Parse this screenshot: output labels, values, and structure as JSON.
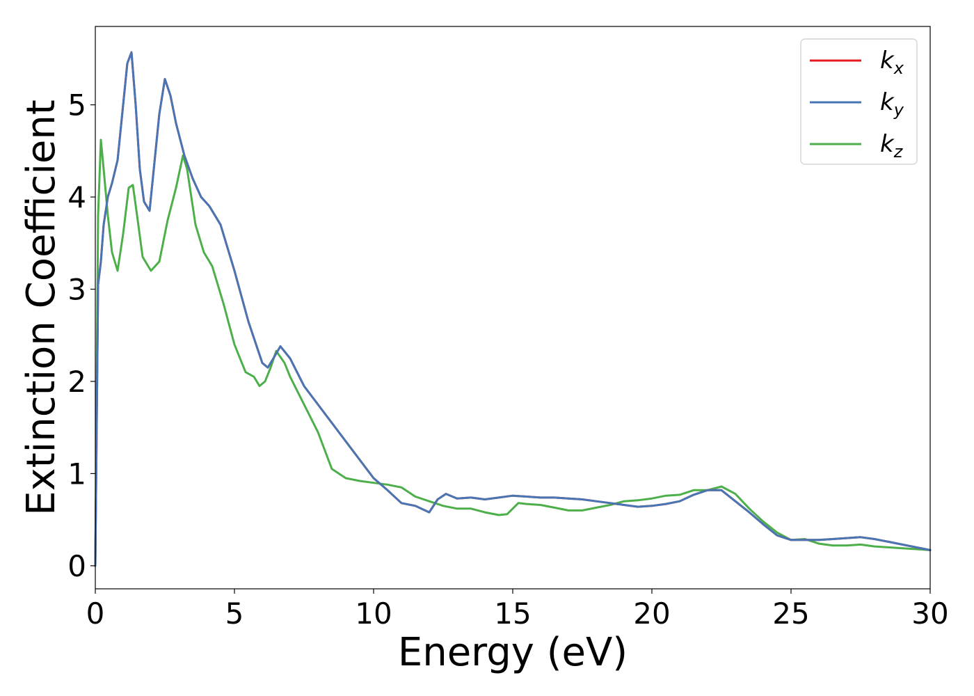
{
  "chart_data": {
    "type": "line",
    "title": "",
    "xlabel": "Energy (eV)",
    "ylabel": "Extinction Coefficient",
    "xlim": [
      0,
      30
    ],
    "ylim": [
      -0.25,
      5.85
    ],
    "xticks": [
      0,
      5,
      10,
      15,
      20,
      25,
      30
    ],
    "yticks": [
      0,
      1,
      2,
      3,
      4,
      5
    ],
    "grid": false,
    "legend_position": "top-right",
    "series": [
      {
        "name": "k",
        "subscript": "x",
        "color": "#e41a1c",
        "x": [
          0,
          0.1,
          0.2,
          0.3,
          0.45,
          0.6,
          0.8,
          1.0,
          1.15,
          1.3,
          1.45,
          1.6,
          1.75,
          1.95,
          2.1,
          2.3,
          2.5,
          2.7,
          2.9,
          3.2,
          3.5,
          3.8,
          4.1,
          4.5,
          5.0,
          5.5,
          6.0,
          6.2,
          6.4,
          6.65,
          7.0,
          7.5,
          8.0,
          8.5,
          9.0,
          9.5,
          10.0,
          10.5,
          11.0,
          11.5,
          12.0,
          12.3,
          12.6,
          13.0,
          13.5,
          14.0,
          14.5,
          15.0,
          15.5,
          16.0,
          16.5,
          17.0,
          17.5,
          18.0,
          18.5,
          19.0,
          19.5,
          20.0,
          20.5,
          21.0,
          21.5,
          22.0,
          22.5,
          23.0,
          23.5,
          24.0,
          24.5,
          25.0,
          25.5,
          26.0,
          26.5,
          27.0,
          27.5,
          28.0,
          28.5,
          29.0,
          29.5,
          30.0
        ],
        "values": [
          0,
          3.05,
          3.3,
          3.7,
          4.0,
          4.15,
          4.4,
          5.0,
          5.45,
          5.57,
          5.0,
          4.3,
          3.95,
          3.85,
          4.3,
          4.9,
          5.28,
          5.1,
          4.8,
          4.45,
          4.2,
          4.0,
          3.9,
          3.7,
          3.2,
          2.65,
          2.2,
          2.15,
          2.25,
          2.38,
          2.25,
          1.95,
          1.75,
          1.55,
          1.35,
          1.15,
          0.95,
          0.82,
          0.68,
          0.65,
          0.58,
          0.72,
          0.78,
          0.73,
          0.74,
          0.72,
          0.74,
          0.76,
          0.75,
          0.74,
          0.74,
          0.73,
          0.72,
          0.7,
          0.68,
          0.66,
          0.64,
          0.65,
          0.67,
          0.7,
          0.77,
          0.82,
          0.82,
          0.7,
          0.58,
          0.45,
          0.33,
          0.28,
          0.28,
          0.28,
          0.29,
          0.3,
          0.31,
          0.29,
          0.26,
          0.23,
          0.2,
          0.17
        ]
      },
      {
        "name": "k",
        "subscript": "y",
        "color": "#4876b4",
        "x": [
          0,
          0.1,
          0.2,
          0.3,
          0.45,
          0.6,
          0.8,
          1.0,
          1.15,
          1.3,
          1.45,
          1.6,
          1.75,
          1.95,
          2.1,
          2.3,
          2.5,
          2.7,
          2.9,
          3.2,
          3.5,
          3.8,
          4.1,
          4.5,
          5.0,
          5.5,
          6.0,
          6.2,
          6.4,
          6.65,
          7.0,
          7.5,
          8.0,
          8.5,
          9.0,
          9.5,
          10.0,
          10.5,
          11.0,
          11.5,
          12.0,
          12.3,
          12.6,
          13.0,
          13.5,
          14.0,
          14.5,
          15.0,
          15.5,
          16.0,
          16.5,
          17.0,
          17.5,
          18.0,
          18.5,
          19.0,
          19.5,
          20.0,
          20.5,
          21.0,
          21.5,
          22.0,
          22.5,
          23.0,
          23.5,
          24.0,
          24.5,
          25.0,
          25.5,
          26.0,
          26.5,
          27.0,
          27.5,
          28.0,
          28.5,
          29.0,
          29.5,
          30.0
        ],
        "values": [
          0,
          3.05,
          3.3,
          3.7,
          4.0,
          4.15,
          4.4,
          5.0,
          5.45,
          5.57,
          5.0,
          4.3,
          3.95,
          3.85,
          4.3,
          4.9,
          5.28,
          5.1,
          4.8,
          4.45,
          4.2,
          4.0,
          3.9,
          3.7,
          3.2,
          2.65,
          2.2,
          2.15,
          2.25,
          2.38,
          2.25,
          1.95,
          1.75,
          1.55,
          1.35,
          1.15,
          0.95,
          0.82,
          0.68,
          0.65,
          0.58,
          0.72,
          0.78,
          0.73,
          0.74,
          0.72,
          0.74,
          0.76,
          0.75,
          0.74,
          0.74,
          0.73,
          0.72,
          0.7,
          0.68,
          0.66,
          0.64,
          0.65,
          0.67,
          0.7,
          0.77,
          0.82,
          0.82,
          0.7,
          0.58,
          0.45,
          0.33,
          0.28,
          0.28,
          0.28,
          0.29,
          0.3,
          0.31,
          0.29,
          0.26,
          0.23,
          0.2,
          0.17
        ]
      },
      {
        "name": "k",
        "subscript": "z",
        "color": "#4daf4a",
        "x": [
          0,
          0.1,
          0.2,
          0.3,
          0.45,
          0.6,
          0.8,
          1.0,
          1.2,
          1.35,
          1.5,
          1.7,
          2.0,
          2.3,
          2.6,
          2.9,
          3.15,
          3.3,
          3.6,
          3.9,
          4.2,
          4.6,
          5.0,
          5.4,
          5.7,
          5.9,
          6.1,
          6.3,
          6.5,
          6.8,
          7.0,
          7.5,
          8.0,
          8.5,
          9.0,
          9.5,
          10.0,
          10.5,
          11.0,
          11.5,
          12.0,
          12.5,
          13.0,
          13.5,
          14.0,
          14.5,
          14.8,
          15.2,
          15.5,
          16.0,
          16.5,
          17.0,
          17.5,
          18.0,
          18.5,
          19.0,
          19.5,
          20.0,
          20.5,
          21.0,
          21.5,
          22.0,
          22.5,
          23.0,
          23.5,
          24.0,
          24.5,
          25.0,
          25.5,
          26.0,
          26.5,
          27.0,
          27.5,
          28.0,
          28.5,
          29.0,
          29.5,
          30.0
        ],
        "values": [
          0,
          3.8,
          4.62,
          4.3,
          3.8,
          3.4,
          3.2,
          3.6,
          4.1,
          4.13,
          3.8,
          3.35,
          3.2,
          3.3,
          3.75,
          4.1,
          4.45,
          4.3,
          3.7,
          3.4,
          3.25,
          2.85,
          2.4,
          2.1,
          2.05,
          1.95,
          2.0,
          2.15,
          2.33,
          2.2,
          2.05,
          1.75,
          1.45,
          1.05,
          0.95,
          0.92,
          0.9,
          0.88,
          0.85,
          0.75,
          0.7,
          0.65,
          0.62,
          0.62,
          0.58,
          0.55,
          0.56,
          0.68,
          0.67,
          0.66,
          0.63,
          0.6,
          0.6,
          0.63,
          0.66,
          0.7,
          0.71,
          0.73,
          0.76,
          0.77,
          0.82,
          0.82,
          0.86,
          0.78,
          0.62,
          0.48,
          0.36,
          0.28,
          0.29,
          0.24,
          0.22,
          0.22,
          0.23,
          0.21,
          0.2,
          0.19,
          0.18,
          0.17
        ]
      }
    ]
  }
}
